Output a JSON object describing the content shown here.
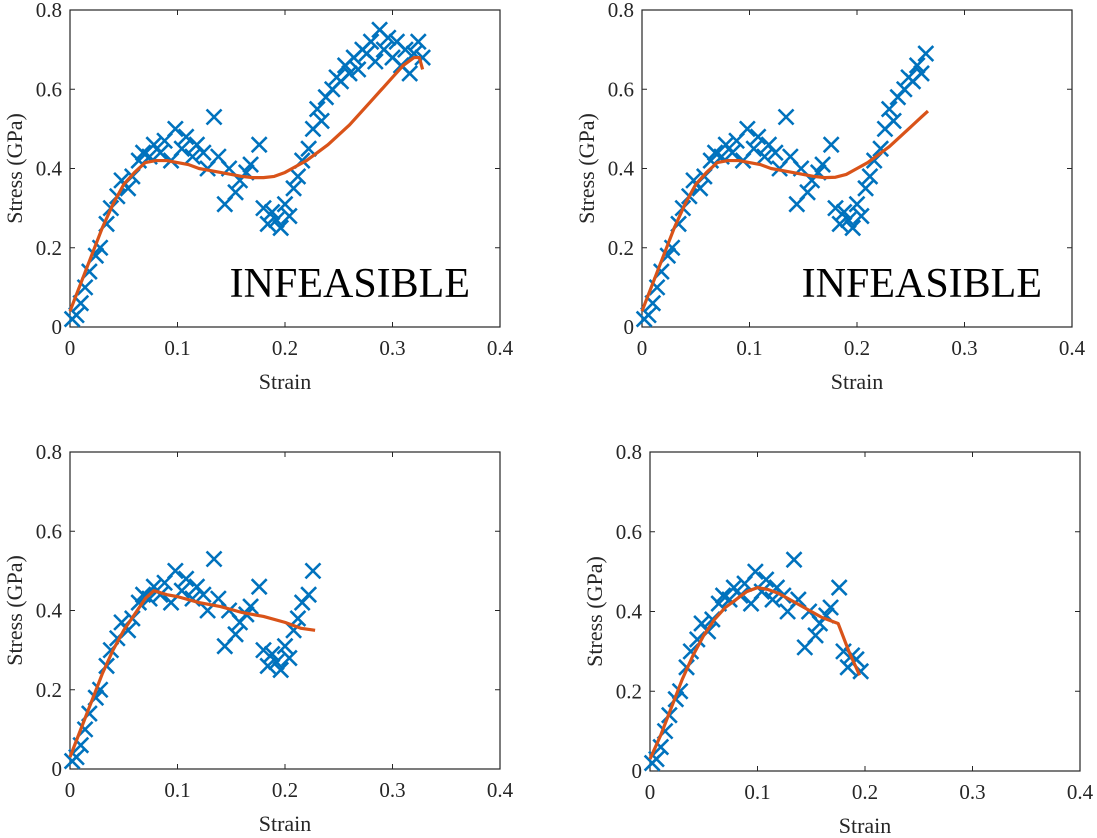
{
  "figure": {
    "layout": "2x2 grid of stress-strain fits"
  },
  "chart_data": [
    {
      "type": "scatter",
      "title": "",
      "xlabel": "Strain",
      "ylabel": "Stress (GPa)",
      "xlim": [
        0,
        0.4
      ],
      "ylim": [
        0,
        0.8
      ],
      "xticks": [
        "0",
        "0.1",
        "0.2",
        "0.3",
        "0.4"
      ],
      "yticks": [
        "0",
        "0.2",
        "0.4",
        "0.6",
        "0.8"
      ],
      "annotation": "INFEASIBLE",
      "colors": {
        "data": "#0072BD",
        "fit": "#D95319"
      },
      "series": [
        {
          "name": "data",
          "marker": "x",
          "x": [
            0.002,
            0.006,
            0.01,
            0.014,
            0.018,
            0.024,
            0.028,
            0.034,
            0.038,
            0.044,
            0.048,
            0.054,
            0.058,
            0.064,
            0.068,
            0.074,
            0.078,
            0.084,
            0.088,
            0.094,
            0.098,
            0.104,
            0.108,
            0.114,
            0.118,
            0.124,
            0.128,
            0.134,
            0.138,
            0.144,
            0.148,
            0.154,
            0.158,
            0.164,
            0.168,
            0.176,
            0.18,
            0.184,
            0.188,
            0.192,
            0.196,
            0.2,
            0.204,
            0.208,
            0.212,
            0.216,
            0.222,
            0.226,
            0.23,
            0.234,
            0.238,
            0.244,
            0.248,
            0.252,
            0.256,
            0.26,
            0.264,
            0.268,
            0.272,
            0.276,
            0.28,
            0.284,
            0.288,
            0.292,
            0.296,
            0.3,
            0.304,
            0.308,
            0.312,
            0.316,
            0.32,
            0.324,
            0.328
          ],
          "y": [
            0.02,
            0.03,
            0.06,
            0.1,
            0.14,
            0.18,
            0.2,
            0.26,
            0.3,
            0.33,
            0.37,
            0.35,
            0.38,
            0.42,
            0.44,
            0.43,
            0.46,
            0.44,
            0.47,
            0.42,
            0.5,
            0.45,
            0.48,
            0.43,
            0.46,
            0.44,
            0.4,
            0.53,
            0.43,
            0.31,
            0.4,
            0.34,
            0.37,
            0.39,
            0.41,
            0.46,
            0.3,
            0.26,
            0.29,
            0.27,
            0.25,
            0.31,
            0.28,
            0.35,
            0.38,
            0.42,
            0.45,
            0.5,
            0.55,
            0.52,
            0.58,
            0.6,
            0.63,
            0.62,
            0.66,
            0.64,
            0.68,
            0.65,
            0.7,
            0.69,
            0.72,
            0.67,
            0.75,
            0.7,
            0.73,
            0.68,
            0.72,
            0.66,
            0.7,
            0.64,
            0.69,
            0.72,
            0.68
          ]
        },
        {
          "name": "fit",
          "marker": "line",
          "x": [
            0,
            0.01,
            0.02,
            0.03,
            0.04,
            0.05,
            0.06,
            0.07,
            0.08,
            0.09,
            0.1,
            0.11,
            0.12,
            0.13,
            0.14,
            0.15,
            0.16,
            0.17,
            0.18,
            0.19,
            0.2,
            0.21,
            0.22,
            0.23,
            0.24,
            0.25,
            0.26,
            0.27,
            0.28,
            0.29,
            0.3,
            0.31,
            0.32,
            0.325,
            0.328
          ],
          "y": [
            0.04,
            0.11,
            0.18,
            0.25,
            0.31,
            0.36,
            0.39,
            0.415,
            0.42,
            0.42,
            0.415,
            0.41,
            0.4,
            0.395,
            0.39,
            0.385,
            0.38,
            0.377,
            0.377,
            0.38,
            0.39,
            0.405,
            0.42,
            0.44,
            0.46,
            0.485,
            0.51,
            0.54,
            0.57,
            0.6,
            0.63,
            0.66,
            0.68,
            0.68,
            0.65
          ]
        }
      ]
    },
    {
      "type": "scatter",
      "title": "",
      "xlabel": "Strain",
      "ylabel": "Stress (GPa)",
      "xlim": [
        0,
        0.4
      ],
      "ylim": [
        0,
        0.8
      ],
      "xticks": [
        "0",
        "0.1",
        "0.2",
        "0.3",
        "0.4"
      ],
      "yticks": [
        "0",
        "0.2",
        "0.4",
        "0.6",
        "0.8"
      ],
      "annotation": "INFEASIBLE",
      "colors": {
        "data": "#0072BD",
        "fit": "#D95319"
      },
      "series": [
        {
          "name": "data",
          "marker": "x",
          "x": [
            0.002,
            0.006,
            0.01,
            0.014,
            0.018,
            0.024,
            0.028,
            0.034,
            0.038,
            0.044,
            0.048,
            0.054,
            0.058,
            0.064,
            0.068,
            0.074,
            0.078,
            0.084,
            0.088,
            0.094,
            0.098,
            0.104,
            0.108,
            0.114,
            0.118,
            0.124,
            0.128,
            0.134,
            0.138,
            0.144,
            0.148,
            0.154,
            0.158,
            0.164,
            0.168,
            0.176,
            0.18,
            0.184,
            0.188,
            0.192,
            0.196,
            0.2,
            0.204,
            0.208,
            0.212,
            0.216,
            0.222,
            0.226,
            0.23,
            0.234,
            0.238,
            0.244,
            0.248,
            0.252,
            0.256,
            0.26,
            0.264
          ],
          "y": [
            0.02,
            0.03,
            0.06,
            0.1,
            0.14,
            0.18,
            0.2,
            0.26,
            0.3,
            0.33,
            0.37,
            0.35,
            0.38,
            0.42,
            0.44,
            0.43,
            0.46,
            0.44,
            0.47,
            0.42,
            0.5,
            0.45,
            0.48,
            0.43,
            0.46,
            0.44,
            0.4,
            0.53,
            0.43,
            0.31,
            0.4,
            0.34,
            0.37,
            0.39,
            0.41,
            0.46,
            0.3,
            0.26,
            0.29,
            0.27,
            0.25,
            0.31,
            0.28,
            0.35,
            0.38,
            0.42,
            0.45,
            0.5,
            0.55,
            0.52,
            0.58,
            0.6,
            0.63,
            0.62,
            0.66,
            0.64,
            0.69
          ]
        },
        {
          "name": "fit",
          "marker": "line",
          "x": [
            0,
            0.01,
            0.02,
            0.03,
            0.04,
            0.05,
            0.06,
            0.07,
            0.08,
            0.09,
            0.1,
            0.11,
            0.12,
            0.13,
            0.14,
            0.15,
            0.16,
            0.17,
            0.18,
            0.19,
            0.2,
            0.21,
            0.22,
            0.23,
            0.24,
            0.25,
            0.26,
            0.266
          ],
          "y": [
            0.04,
            0.11,
            0.18,
            0.25,
            0.31,
            0.36,
            0.39,
            0.415,
            0.42,
            0.42,
            0.415,
            0.41,
            0.4,
            0.395,
            0.39,
            0.385,
            0.38,
            0.377,
            0.378,
            0.385,
            0.4,
            0.415,
            0.435,
            0.455,
            0.48,
            0.505,
            0.53,
            0.545
          ]
        }
      ]
    },
    {
      "type": "scatter",
      "title": "",
      "xlabel": "Strain",
      "ylabel": "Stress (GPa)",
      "xlim": [
        0,
        0.4
      ],
      "ylim": [
        0,
        0.8
      ],
      "xticks": [
        "0",
        "0.1",
        "0.2",
        "0.3",
        "0.4"
      ],
      "yticks": [
        "0",
        "0.2",
        "0.4",
        "0.6",
        "0.8"
      ],
      "annotation": "",
      "colors": {
        "data": "#0072BD",
        "fit": "#D95319"
      },
      "series": [
        {
          "name": "data",
          "marker": "x",
          "x": [
            0.002,
            0.006,
            0.01,
            0.014,
            0.018,
            0.024,
            0.028,
            0.034,
            0.038,
            0.044,
            0.048,
            0.054,
            0.058,
            0.064,
            0.068,
            0.074,
            0.078,
            0.084,
            0.088,
            0.094,
            0.098,
            0.104,
            0.108,
            0.114,
            0.118,
            0.124,
            0.128,
            0.134,
            0.138,
            0.144,
            0.148,
            0.154,
            0.158,
            0.164,
            0.168,
            0.176,
            0.18,
            0.184,
            0.188,
            0.192,
            0.196,
            0.2,
            0.204,
            0.208,
            0.212,
            0.216,
            0.222,
            0.226
          ],
          "y": [
            0.02,
            0.03,
            0.06,
            0.1,
            0.14,
            0.18,
            0.2,
            0.26,
            0.3,
            0.33,
            0.37,
            0.35,
            0.38,
            0.42,
            0.44,
            0.43,
            0.46,
            0.44,
            0.47,
            0.42,
            0.5,
            0.45,
            0.48,
            0.43,
            0.46,
            0.44,
            0.4,
            0.53,
            0.43,
            0.31,
            0.4,
            0.34,
            0.37,
            0.39,
            0.41,
            0.46,
            0.3,
            0.26,
            0.29,
            0.27,
            0.25,
            0.31,
            0.28,
            0.35,
            0.38,
            0.42,
            0.44,
            0.5
          ]
        },
        {
          "name": "fit",
          "marker": "line",
          "x": [
            0,
            0.01,
            0.02,
            0.03,
            0.04,
            0.05,
            0.06,
            0.07,
            0.078,
            0.09,
            0.1,
            0.12,
            0.14,
            0.16,
            0.18,
            0.2,
            0.215,
            0.228
          ],
          "y": [
            0.03,
            0.1,
            0.17,
            0.24,
            0.3,
            0.35,
            0.39,
            0.43,
            0.45,
            0.44,
            0.435,
            0.42,
            0.41,
            0.395,
            0.385,
            0.37,
            0.355,
            0.35
          ]
        }
      ]
    },
    {
      "type": "scatter",
      "title": "",
      "xlabel": "Strain",
      "ylabel": "Stress (GPa)",
      "xlim": [
        0,
        0.4
      ],
      "ylim": [
        0,
        0.8
      ],
      "xticks": [
        "0",
        "0.1",
        "0.2",
        "0.3",
        "0.4"
      ],
      "yticks": [
        "0",
        "0.2",
        "0.4",
        "0.6",
        "0.8"
      ],
      "annotation": "",
      "colors": {
        "data": "#0072BD",
        "fit": "#D95319"
      },
      "series": [
        {
          "name": "data",
          "marker": "x",
          "x": [
            0.002,
            0.006,
            0.01,
            0.014,
            0.018,
            0.024,
            0.028,
            0.034,
            0.038,
            0.044,
            0.048,
            0.054,
            0.058,
            0.064,
            0.068,
            0.074,
            0.078,
            0.084,
            0.088,
            0.094,
            0.098,
            0.104,
            0.108,
            0.114,
            0.118,
            0.124,
            0.128,
            0.134,
            0.138,
            0.144,
            0.148,
            0.154,
            0.158,
            0.164,
            0.168,
            0.176,
            0.18,
            0.184,
            0.188,
            0.192,
            0.196
          ],
          "y": [
            0.02,
            0.03,
            0.06,
            0.1,
            0.14,
            0.18,
            0.2,
            0.26,
            0.3,
            0.33,
            0.37,
            0.35,
            0.38,
            0.42,
            0.44,
            0.43,
            0.46,
            0.44,
            0.47,
            0.42,
            0.5,
            0.45,
            0.48,
            0.43,
            0.46,
            0.44,
            0.4,
            0.53,
            0.43,
            0.31,
            0.4,
            0.34,
            0.37,
            0.39,
            0.41,
            0.46,
            0.3,
            0.26,
            0.29,
            0.28,
            0.25
          ]
        },
        {
          "name": "fit",
          "marker": "line",
          "x": [
            0,
            0.01,
            0.02,
            0.03,
            0.04,
            0.05,
            0.06,
            0.07,
            0.08,
            0.09,
            0.1,
            0.11,
            0.12,
            0.13,
            0.14,
            0.15,
            0.16,
            0.175,
            0.185,
            0.195
          ],
          "y": [
            0.03,
            0.09,
            0.16,
            0.23,
            0.29,
            0.34,
            0.38,
            0.41,
            0.43,
            0.45,
            0.46,
            0.455,
            0.445,
            0.43,
            0.415,
            0.4,
            0.385,
            0.37,
            0.3,
            0.24
          ]
        }
      ]
    }
  ]
}
